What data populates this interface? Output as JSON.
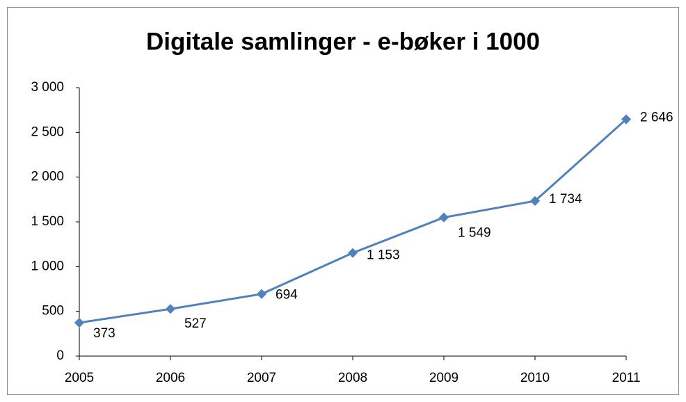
{
  "chart_data": {
    "type": "line",
    "title": "Digitale samlinger - e-bøker i 1000",
    "x": [
      2005,
      2006,
      2007,
      2008,
      2009,
      2010,
      2011
    ],
    "xlim": [
      2005,
      2011
    ],
    "xticks": [
      2005,
      2006,
      2007,
      2008,
      2009,
      2010,
      2011
    ],
    "series": [
      {
        "name": "e-bøker",
        "color": "#4f81bd",
        "values": [
          373,
          527,
          694,
          1153,
          1549,
          1734,
          2646
        ],
        "value_labels": [
          "373",
          "527",
          "694",
          "1 153",
          "1 549",
          "1 734",
          "2 646"
        ]
      }
    ],
    "ylim": [
      0,
      3000
    ],
    "yticks": [
      0,
      500,
      {
        "value": 1000,
        "label": "1 000"
      },
      {
        "value": 1500,
        "label": "1 500"
      },
      {
        "value": 2000,
        "label": "2 000"
      },
      {
        "value": 2500,
        "label": "2 500"
      },
      {
        "value": 3000,
        "label": "3 000"
      }
    ],
    "grid": false
  }
}
